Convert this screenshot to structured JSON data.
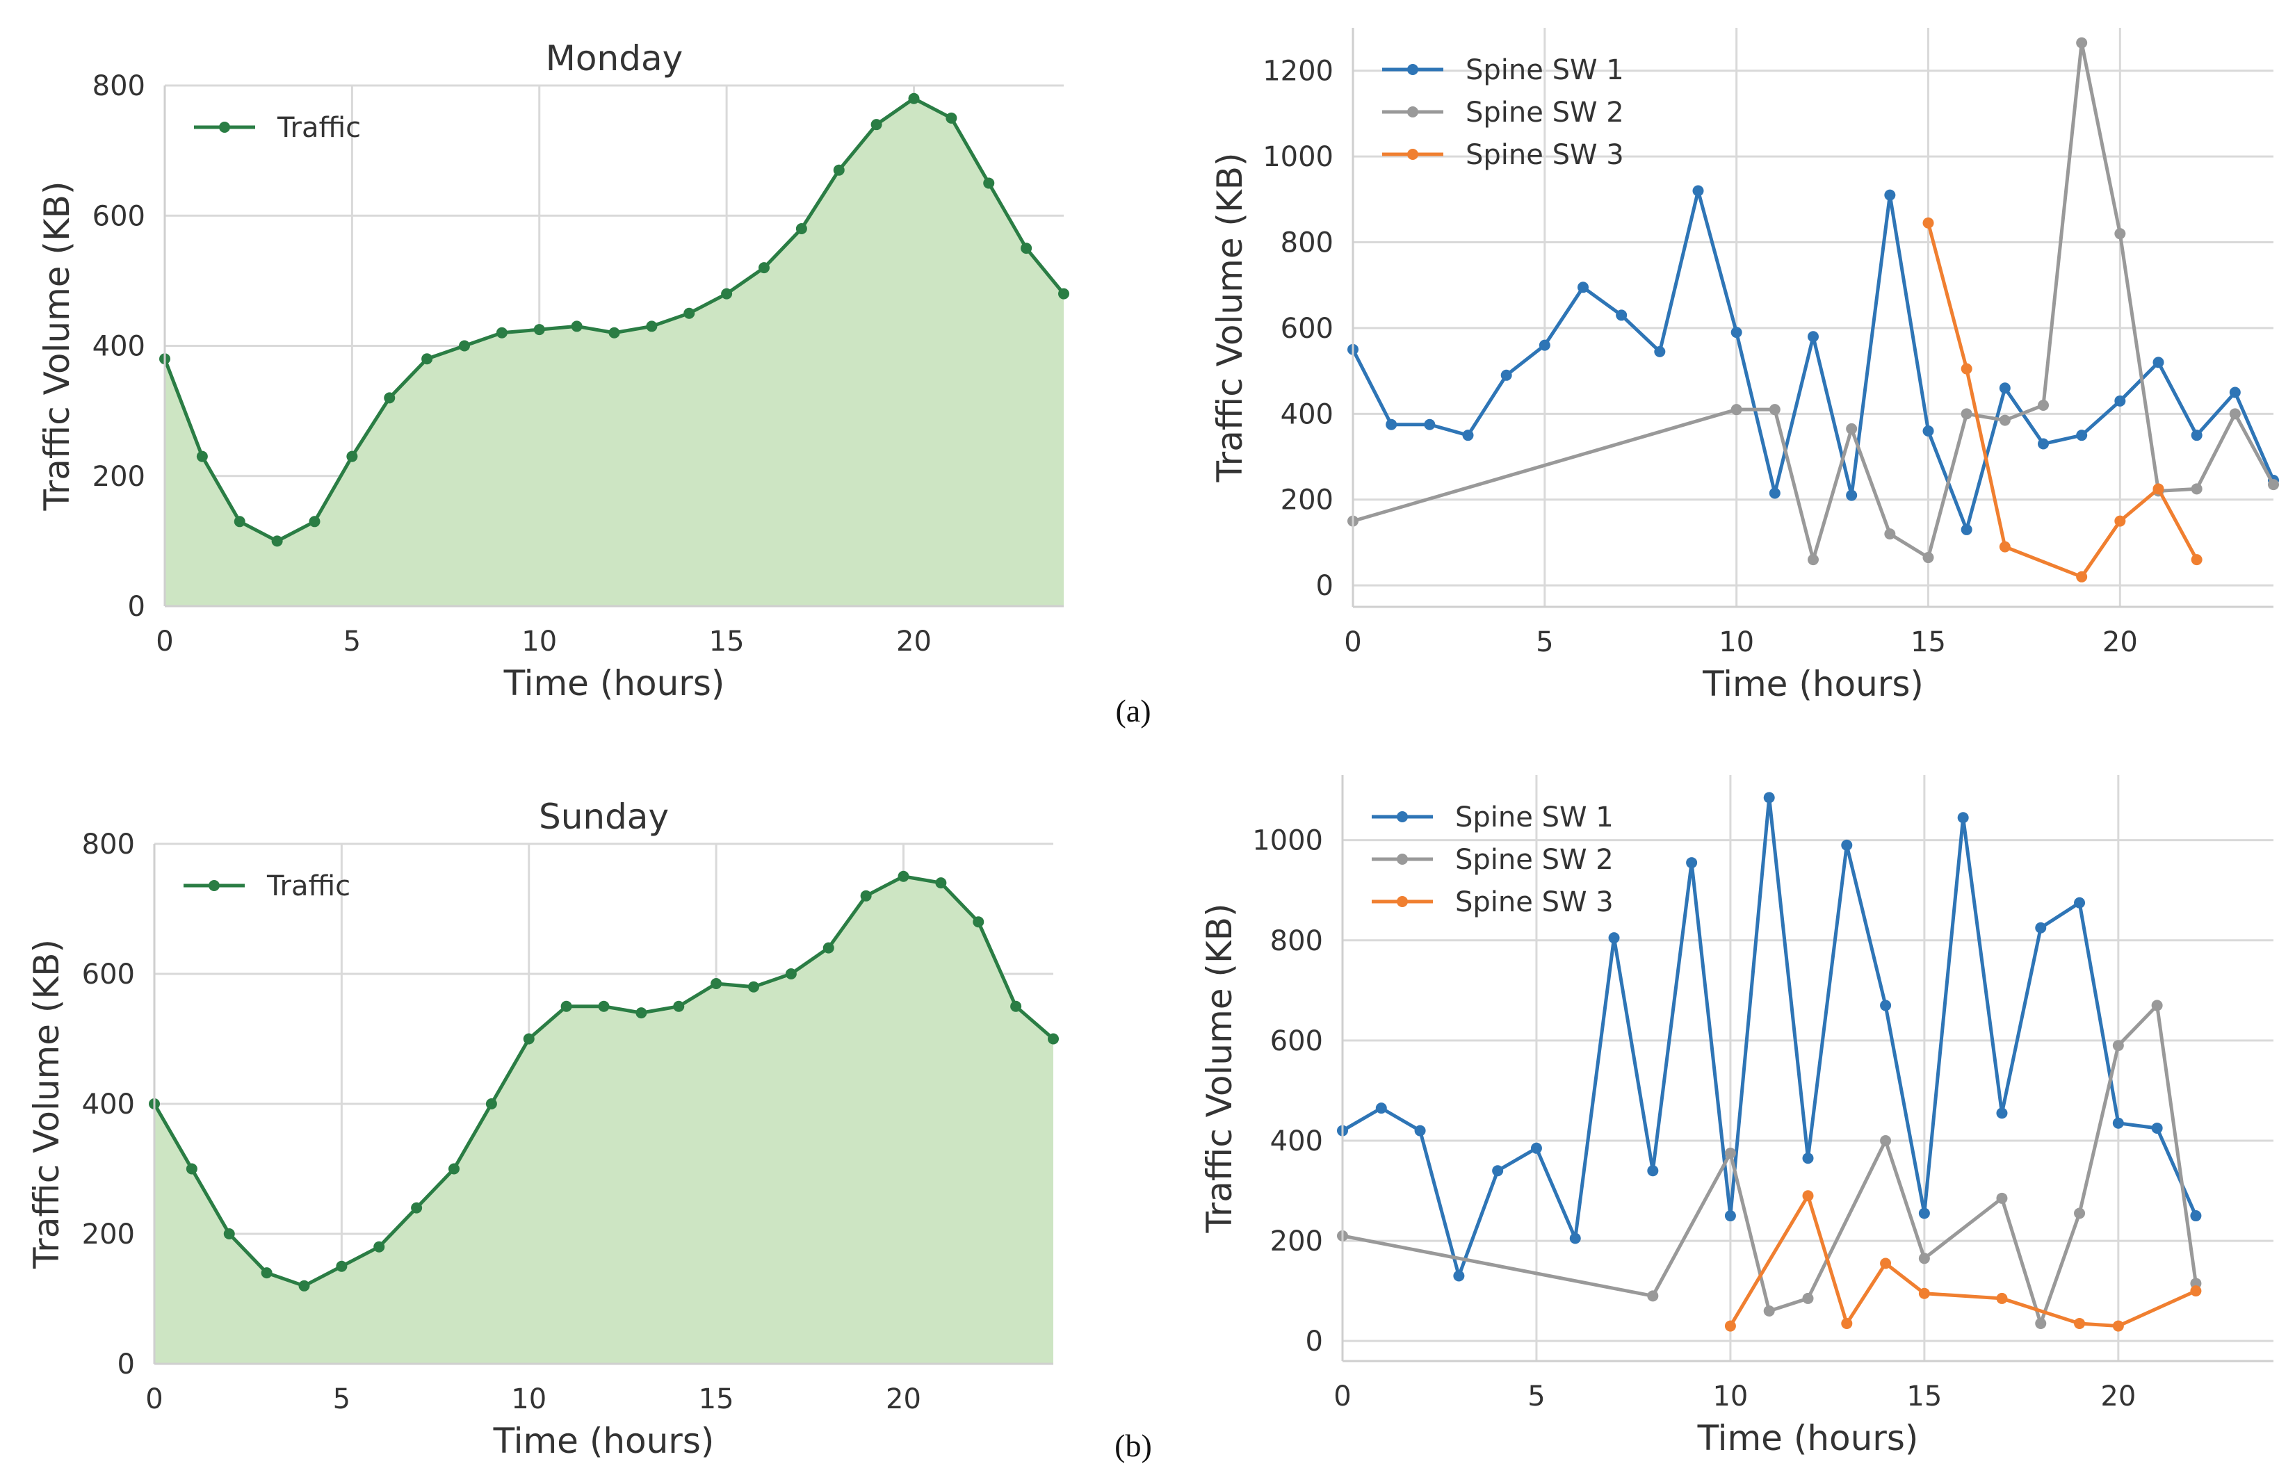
{
  "panel_labels": [
    "(a)",
    "(b)"
  ],
  "colors": {
    "traffic_line": "#2a7d44",
    "traffic_fill": "#cde5c3",
    "spine1": "#2e75b6",
    "spine2": "#999999",
    "spine3": "#f07f30",
    "grid": "#d9d9d9",
    "axis_text": "#333333"
  },
  "chart_data": [
    {
      "id": "monday",
      "type": "area",
      "title": "Monday",
      "xlabel": "Time (hours)",
      "ylabel": "Traffic Volume (KB)",
      "xlim": [
        0,
        24
      ],
      "ylim": [
        0,
        800
      ],
      "xticks": [
        0,
        5,
        10,
        15,
        20
      ],
      "yticks": [
        0,
        200,
        400,
        600,
        800
      ],
      "grid": true,
      "legend_position": "top-left",
      "series": [
        {
          "name": "Traffic",
          "color_key": "traffic_line",
          "fill": true,
          "x": [
            0,
            1,
            2,
            3,
            4,
            5,
            6,
            7,
            8,
            9,
            10,
            11,
            12,
            13,
            14,
            15,
            16,
            17,
            18,
            19,
            20,
            21,
            22,
            23,
            24
          ],
          "y": [
            380,
            230,
            130,
            100,
            130,
            230,
            320,
            380,
            400,
            420,
            425,
            430,
            420,
            430,
            450,
            480,
            520,
            580,
            670,
            740,
            780,
            750,
            650,
            550,
            480
          ]
        }
      ]
    },
    {
      "id": "spine-a",
      "type": "line",
      "title": "",
      "xlabel": "Time (hours)",
      "ylabel": "Traffic Volume (KB)",
      "xlim": [
        0,
        24
      ],
      "ylim": [
        -50,
        1300
      ],
      "xticks": [
        0,
        5,
        10,
        15,
        20
      ],
      "yticks": [
        0,
        200,
        400,
        600,
        800,
        1000,
        1200
      ],
      "grid": true,
      "legend_position": "top-left",
      "series": [
        {
          "name": "Spine SW 1",
          "color_key": "spine1",
          "x": [
            0,
            1,
            2,
            3,
            4,
            5,
            6,
            7,
            8,
            9,
            10,
            11,
            12,
            13,
            14,
            15,
            16,
            17,
            18,
            19,
            20,
            21,
            22,
            23,
            24
          ],
          "y": [
            550,
            375,
            375,
            350,
            490,
            560,
            695,
            630,
            545,
            920,
            590,
            215,
            580,
            210,
            910,
            360,
            130,
            460,
            330,
            350,
            430,
            520,
            350,
            450,
            245
          ]
        },
        {
          "name": "Spine SW 2",
          "color_key": "spine2",
          "x": [
            0,
            10,
            11,
            12,
            13,
            14,
            15,
            16,
            17,
            18,
            19,
            20,
            21,
            22,
            23,
            24
          ],
          "y": [
            150,
            410,
            410,
            60,
            365,
            120,
            65,
            400,
            385,
            420,
            1265,
            820,
            220,
            225,
            400,
            235
          ]
        },
        {
          "name": "Spine SW 3",
          "color_key": "spine3",
          "x": [
            15,
            16,
            17,
            19,
            20,
            21,
            22
          ],
          "y": [
            845,
            505,
            90,
            20,
            150,
            225,
            60
          ]
        }
      ]
    },
    {
      "id": "sunday",
      "type": "area",
      "title": "Sunday",
      "xlabel": "Time (hours)",
      "ylabel": "Traffic Volume (KB)",
      "xlim": [
        0,
        24
      ],
      "ylim": [
        0,
        800
      ],
      "xticks": [
        0,
        5,
        10,
        15,
        20
      ],
      "yticks": [
        0,
        200,
        400,
        600,
        800
      ],
      "grid": true,
      "legend_position": "top-left",
      "series": [
        {
          "name": "Traffic",
          "color_key": "traffic_line",
          "fill": true,
          "x": [
            0,
            1,
            2,
            3,
            4,
            5,
            6,
            7,
            8,
            9,
            10,
            11,
            12,
            13,
            14,
            15,
            16,
            17,
            18,
            19,
            20,
            21,
            22,
            23,
            24
          ],
          "y": [
            400,
            300,
            200,
            140,
            120,
            150,
            180,
            240,
            300,
            400,
            500,
            550,
            550,
            540,
            550,
            585,
            580,
            600,
            640,
            720,
            750,
            740,
            680,
            550,
            500
          ]
        }
      ]
    },
    {
      "id": "spine-b",
      "type": "line",
      "title": "",
      "xlabel": "Time (hours)",
      "ylabel": "Traffic Volume (KB)",
      "xlim": [
        0,
        24
      ],
      "ylim": [
        -40,
        1130
      ],
      "xticks": [
        0,
        5,
        10,
        15,
        20
      ],
      "yticks": [
        0,
        200,
        400,
        600,
        800,
        1000
      ],
      "grid": true,
      "legend_position": "top-left",
      "series": [
        {
          "name": "Spine SW 1",
          "color_key": "spine1",
          "x": [
            0,
            1,
            2,
            3,
            4,
            5,
            6,
            7,
            8,
            9,
            10,
            11,
            12,
            13,
            14,
            15,
            16,
            17,
            18,
            19,
            20,
            21,
            22
          ],
          "y": [
            420,
            465,
            420,
            130,
            340,
            385,
            205,
            805,
            340,
            955,
            250,
            1085,
            365,
            990,
            670,
            255,
            1045,
            455,
            825,
            875,
            435,
            425,
            250
          ]
        },
        {
          "name": "Spine SW 2",
          "color_key": "spine2",
          "x": [
            0,
            8,
            10,
            11,
            12,
            14,
            15,
            17,
            18,
            19,
            20,
            21,
            22
          ],
          "y": [
            210,
            90,
            375,
            60,
            85,
            400,
            165,
            285,
            35,
            255,
            590,
            670,
            115
          ]
        },
        {
          "name": "Spine SW 3",
          "color_key": "spine3",
          "x": [
            10,
            12,
            13,
            14,
            15,
            17,
            19,
            20,
            22
          ],
          "y": [
            30,
            290,
            35,
            155,
            95,
            85,
            35,
            30,
            100
          ]
        }
      ]
    }
  ]
}
